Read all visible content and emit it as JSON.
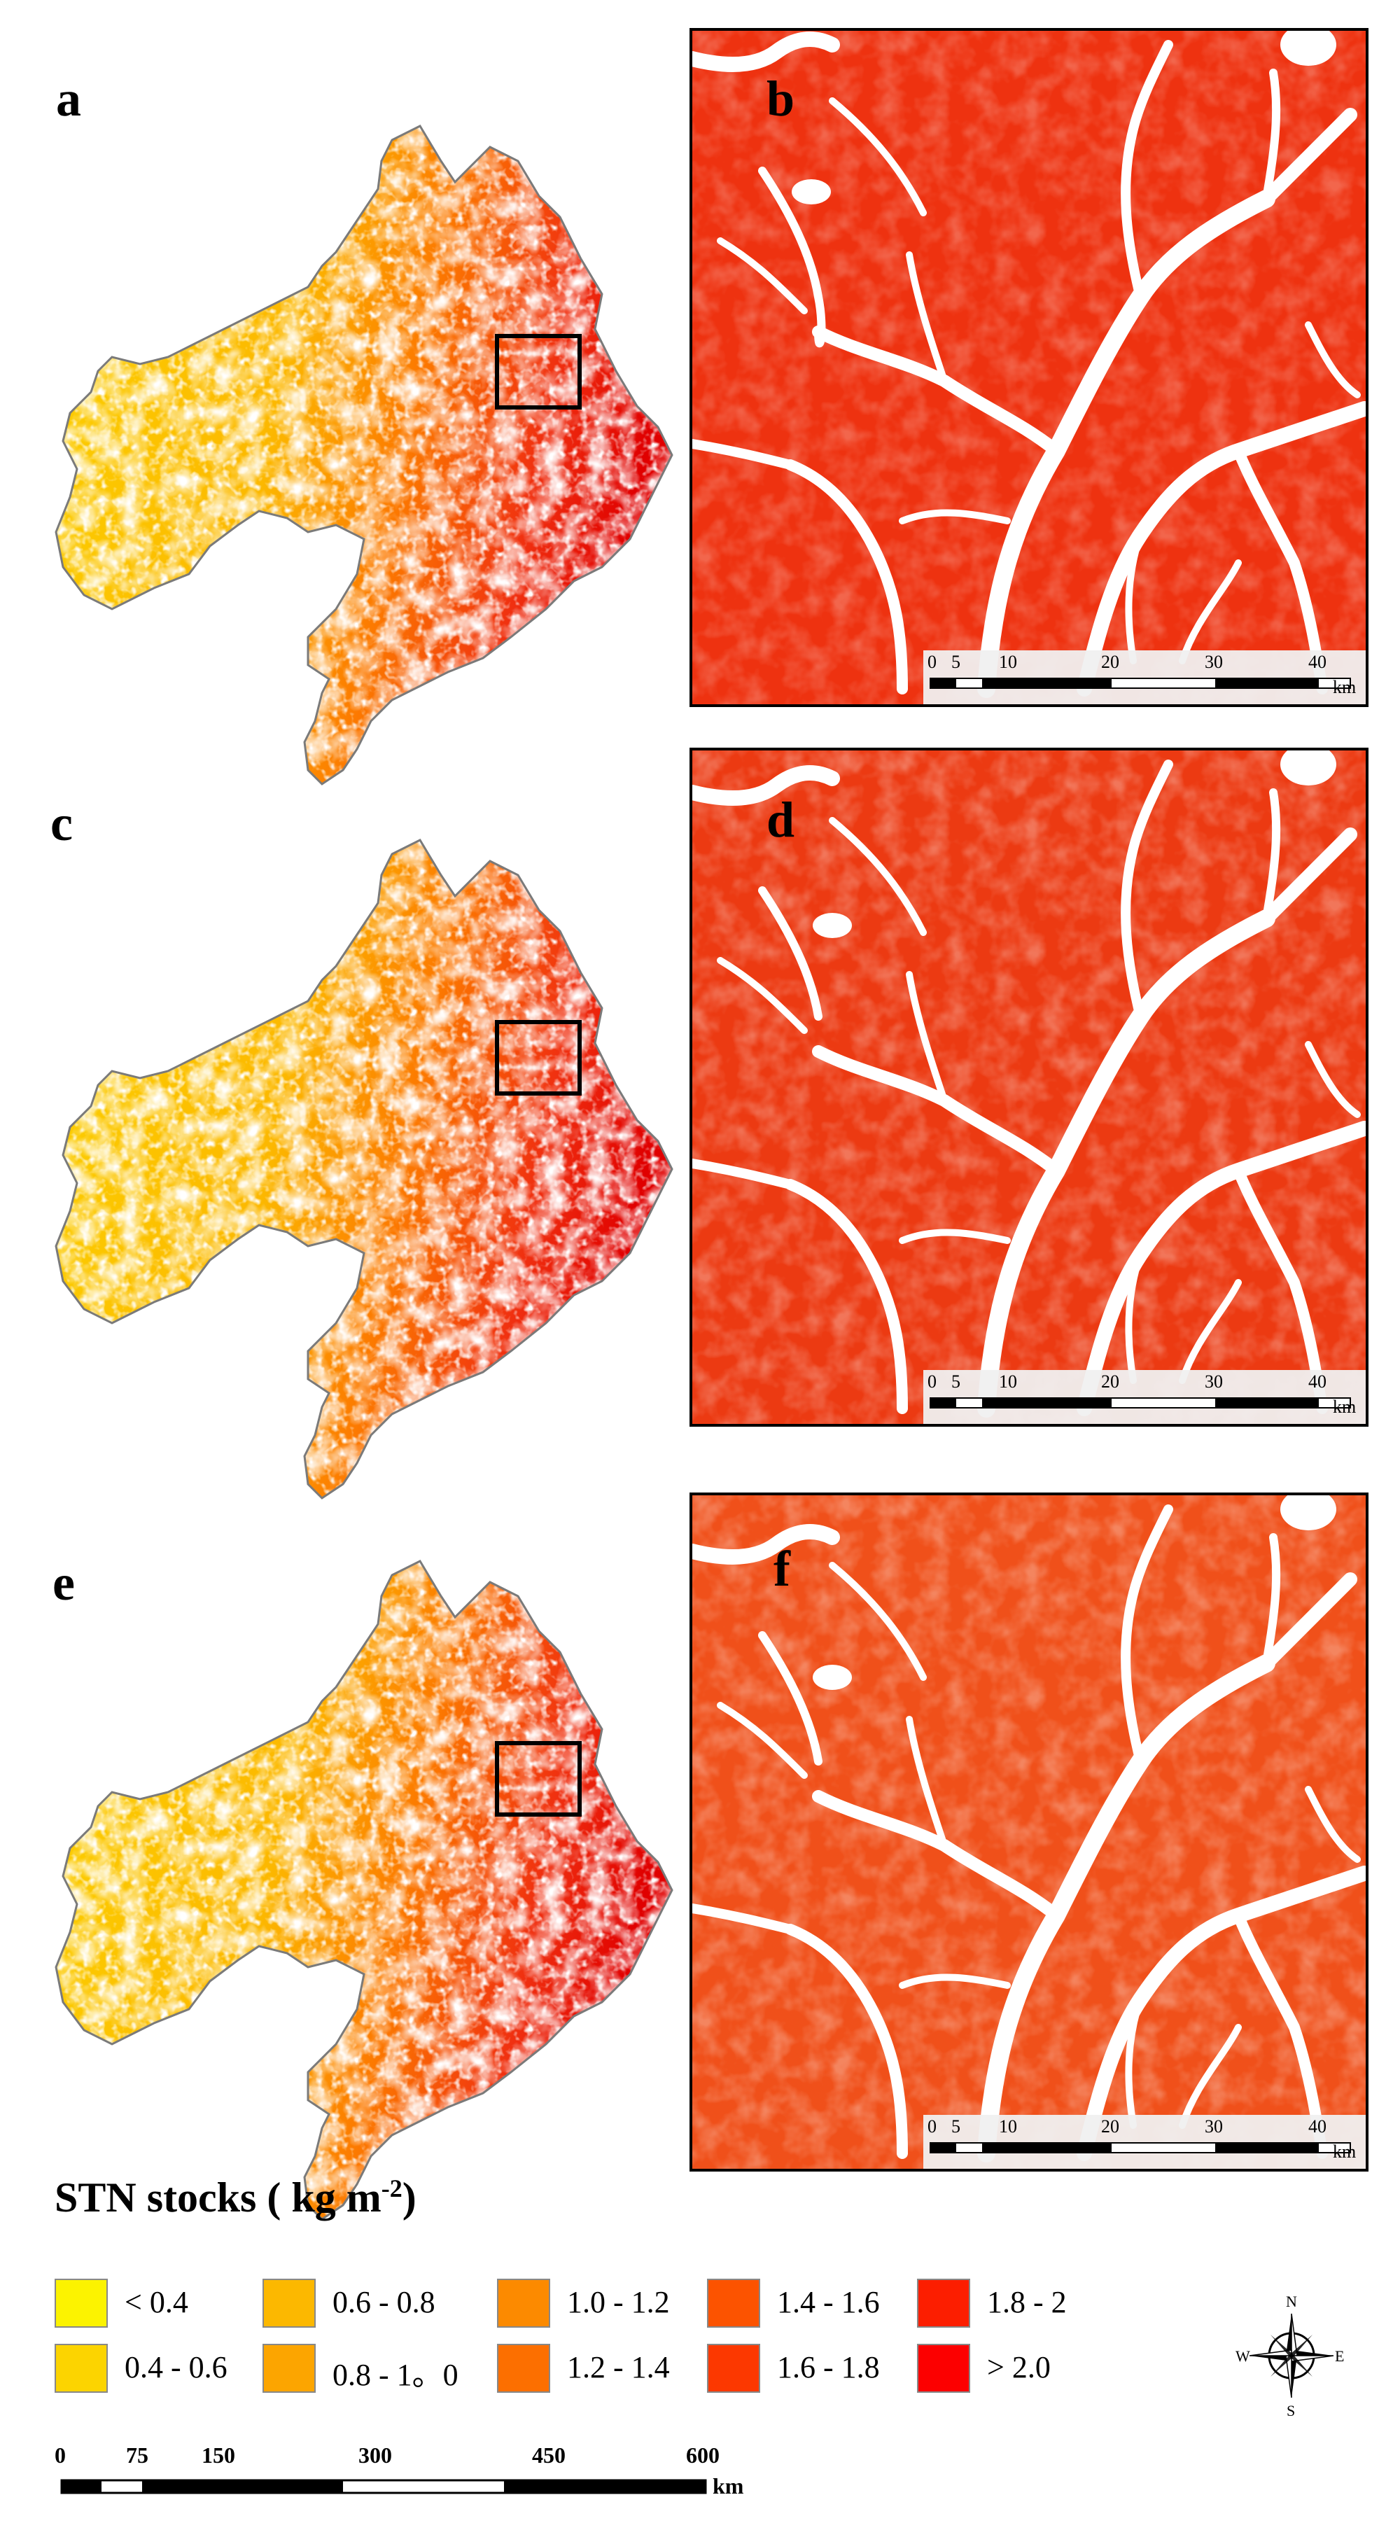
{
  "panels": [
    {
      "label": "a"
    },
    {
      "label": "b"
    },
    {
      "label": "c"
    },
    {
      "label": "d"
    },
    {
      "label": "e"
    },
    {
      "label": "f"
    }
  ],
  "inset_scale": {
    "ticks": [
      "0",
      "5",
      "10",
      "20",
      "30",
      "40"
    ],
    "unit": "km"
  },
  "legend": {
    "title_main": "STN stocks ( kg m",
    "title_sup": "-2",
    "title_close": ")",
    "items": [
      {
        "label": "< 0.4",
        "color": "#fcf300"
      },
      {
        "label": "0.4 - 0.6",
        "color": "#fcd400"
      },
      {
        "label": "0.6 - 0.8",
        "color": "#fcb800"
      },
      {
        "label": "0.8 - 1。0",
        "color": "#fca500"
      },
      {
        "label": "1.0 - 1.2",
        "color": "#fc8a00"
      },
      {
        "label": "1.2 - 1.4",
        "color": "#fc6f00"
      },
      {
        "label": "1.4 - 1.6",
        "color": "#fc5300"
      },
      {
        "label": "1.6 - 1.8",
        "color": "#fc3800"
      },
      {
        "label": "1.8 - 2",
        "color": "#fc1e00"
      },
      {
        "label": "> 2.0",
        "color": "#fc0000"
      }
    ]
  },
  "compass": {
    "n": "N",
    "s": "S",
    "e": "E",
    "w": "W"
  },
  "main_scale": {
    "ticks": [
      "0",
      "75",
      "150",
      "300",
      "450",
      "600"
    ],
    "unit": "km"
  },
  "colors": {
    "province_outline": "#7a7a7a",
    "map_background": "#ffffff",
    "river": "#ffffff",
    "zoom_base_b": "#ee3210",
    "zoom_base_d": "#ec3a12",
    "zoom_base_f": "#f0501a"
  }
}
